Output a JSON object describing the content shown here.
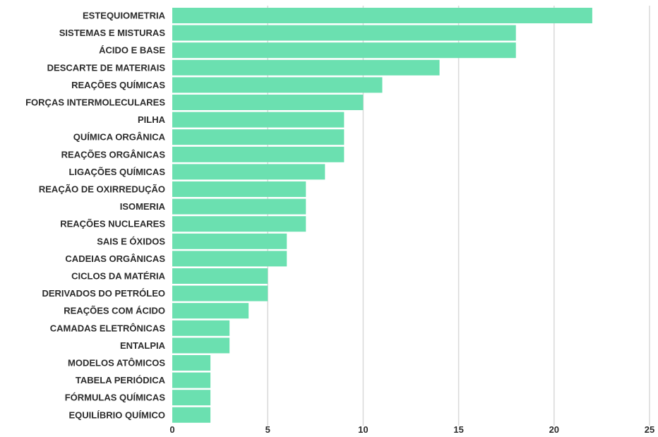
{
  "chart_data": {
    "type": "bar",
    "orientation": "horizontal",
    "categories": [
      "ESTEQUIOMETRIA",
      "SISTEMAS E MISTURAS",
      "ÁCIDO E BASE",
      "DESCARTE DE MATERIAIS",
      "REAÇÕES QUÍMICAS",
      "FORÇAS INTERMOLECULARES",
      "PILHA",
      "QUÍMICA ORGÂNICA",
      "REAÇÕES ORGÂNICAS",
      "LIGAÇÕES QUÍMICAS",
      "REAÇÃO DE OXIRREDUÇÃO",
      "ISOMERIA",
      "REAÇÕES NUCLEARES",
      "SAIS E ÓXIDOS",
      "CADEIAS ORGÂNICAS",
      "CICLOS DA MATÉRIA",
      "DERIVADOS DO PETRÓLEO",
      "REAÇÕES COM ÁCIDO",
      "CAMADAS ELETRÔNICAS",
      "ENTALPIA",
      "MODELOS ATÔMICOS",
      "TABELA PERIÓDICA",
      "FÓRMULAS QUÍMICAS",
      "EQUILÍBRIO QUÍMICO"
    ],
    "values": [
      22,
      18,
      18,
      14,
      11,
      10,
      9,
      9,
      9,
      8,
      7,
      7,
      7,
      6,
      6,
      5,
      5,
      4,
      3,
      3,
      2,
      2,
      2,
      2
    ],
    "xlim": [
      0,
      25
    ],
    "xticks": [
      0,
      5,
      10,
      15,
      20,
      25
    ],
    "xtick_labels": [
      "0",
      "5",
      "10",
      "15",
      "20",
      "25"
    ],
    "grid": true,
    "bar_color": "#6be0b0",
    "title": "",
    "xlabel": "",
    "ylabel": ""
  }
}
